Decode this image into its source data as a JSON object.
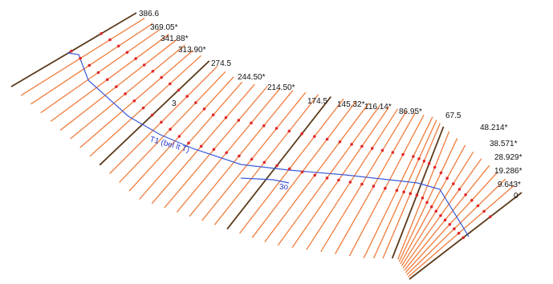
{
  "station_labels": [
    "386.6",
    "369.05*",
    "341.88*",
    "313.90*",
    "274.5",
    "244.50*",
    "214.50*",
    "174.5",
    "145.32*",
    "116.14*",
    "86.95*",
    "67.5",
    "48.214*",
    "38.571*",
    "28.929*",
    "19.286*",
    "9.643*",
    "0"
  ],
  "annotations": {
    "center_number": "3",
    "curve_text": "T1 (bel lt T)",
    "center_mark": "3o"
  },
  "colors": {
    "section_line": "#f07c3c",
    "major_section_line": "#5b3a1a",
    "axis_line": "#3a5bd8",
    "point": "#e0282c"
  }
}
